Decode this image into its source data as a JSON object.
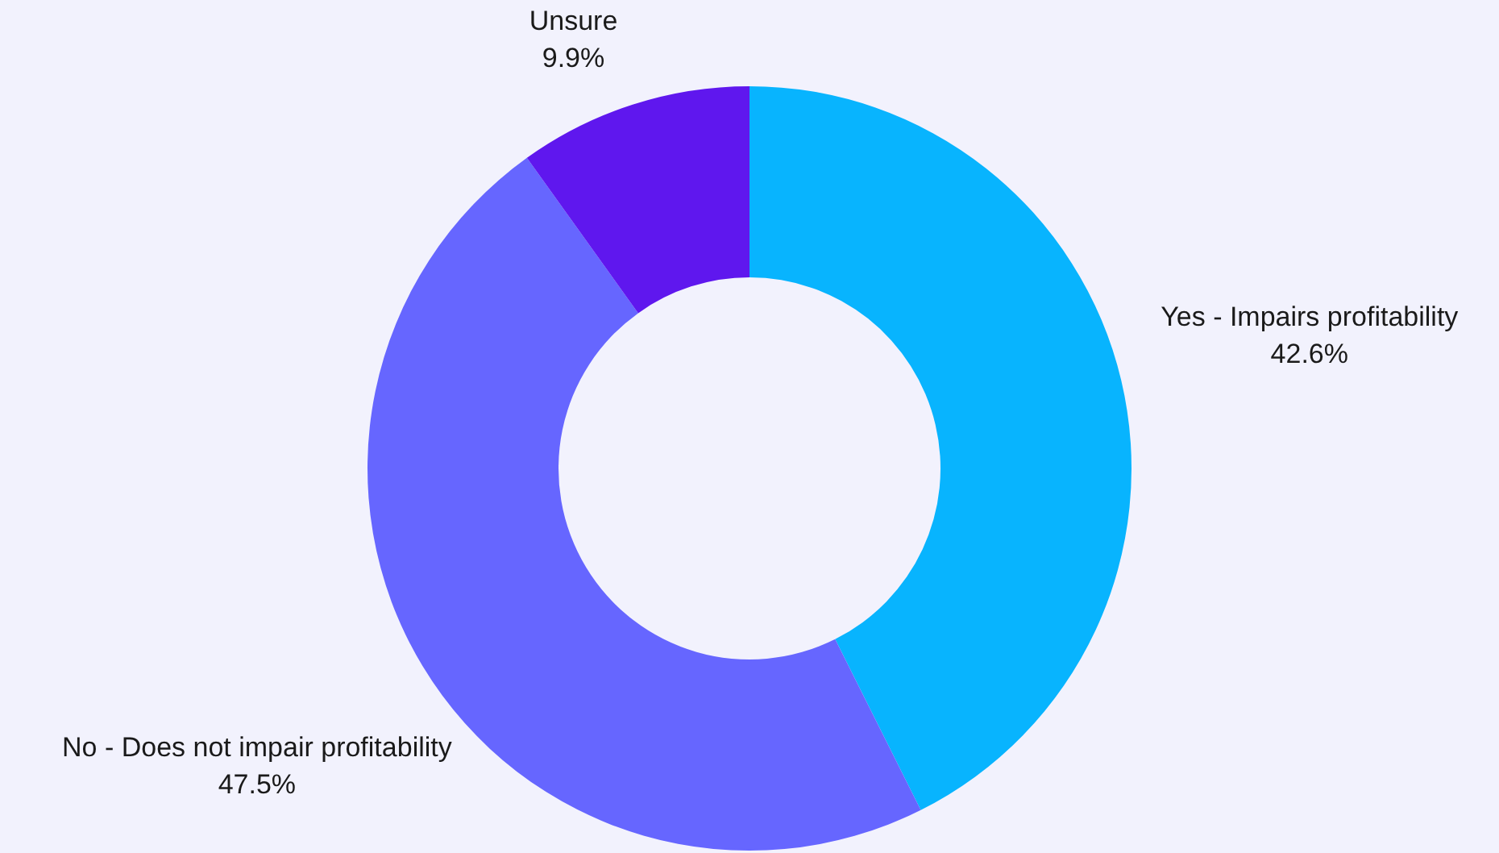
{
  "chart_data": {
    "type": "donut",
    "categories": [
      "Yes - Impairs profitability",
      "No - Does not impair profitability",
      "Unsure"
    ],
    "values": [
      42.6,
      47.5,
      9.9
    ],
    "value_labels": [
      "42.6%",
      "47.5%",
      "9.9%"
    ],
    "colors": [
      "#08b4fe",
      "#6666ff",
      "#5f17ee"
    ]
  }
}
